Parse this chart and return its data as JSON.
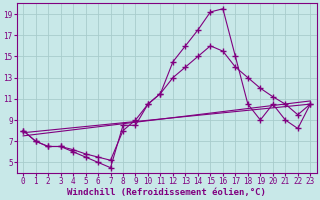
{
  "background_color": "#c8e8e8",
  "line_color": "#800080",
  "grid_color": "#b0d0d0",
  "xlabel": "Windchill (Refroidissement éolien,°C)",
  "xlabel_fontsize": 6.5,
  "xtick_fontsize": 5.5,
  "ytick_fontsize": 5.5,
  "xlim": [
    -0.5,
    23.5
  ],
  "ylim": [
    4,
    20
  ],
  "xticks": [
    0,
    1,
    2,
    3,
    4,
    5,
    6,
    7,
    8,
    9,
    10,
    11,
    12,
    13,
    14,
    15,
    16,
    17,
    18,
    19,
    20,
    21,
    22,
    23
  ],
  "yticks": [
    5,
    7,
    9,
    11,
    13,
    15,
    17,
    19
  ],
  "line1_x": [
    0,
    1,
    2,
    3,
    4,
    5,
    6,
    7,
    8,
    9,
    10,
    11,
    12,
    13,
    14,
    15,
    16,
    17,
    18,
    19,
    20,
    21,
    22,
    23
  ],
  "line1_y": [
    8,
    7,
    6.5,
    6.5,
    6,
    5.5,
    5,
    4.5,
    8.5,
    8.5,
    10.5,
    11.5,
    14.5,
    16,
    17.5,
    19.2,
    19.5,
    15,
    10.5,
    9,
    10.5,
    9,
    8.2,
    10.5
  ],
  "line2_x": [
    0,
    1,
    2,
    3,
    4,
    5,
    6,
    7,
    8,
    9,
    10,
    11,
    12,
    13,
    14,
    15,
    16,
    17,
    18,
    19,
    20,
    21,
    22,
    23
  ],
  "line2_y": [
    8,
    7,
    6.5,
    6.5,
    6.2,
    5.8,
    5.5,
    5.2,
    8,
    9,
    10.5,
    11.5,
    13,
    14,
    15,
    16,
    15.5,
    14,
    13,
    12,
    11.2,
    10.5,
    9.5,
    10.5
  ],
  "line3_x": [
    0,
    23
  ],
  "line3_y": [
    7.8,
    10.5
  ],
  "line4_x": [
    0,
    23
  ],
  "line4_y": [
    7.8,
    10.5
  ]
}
